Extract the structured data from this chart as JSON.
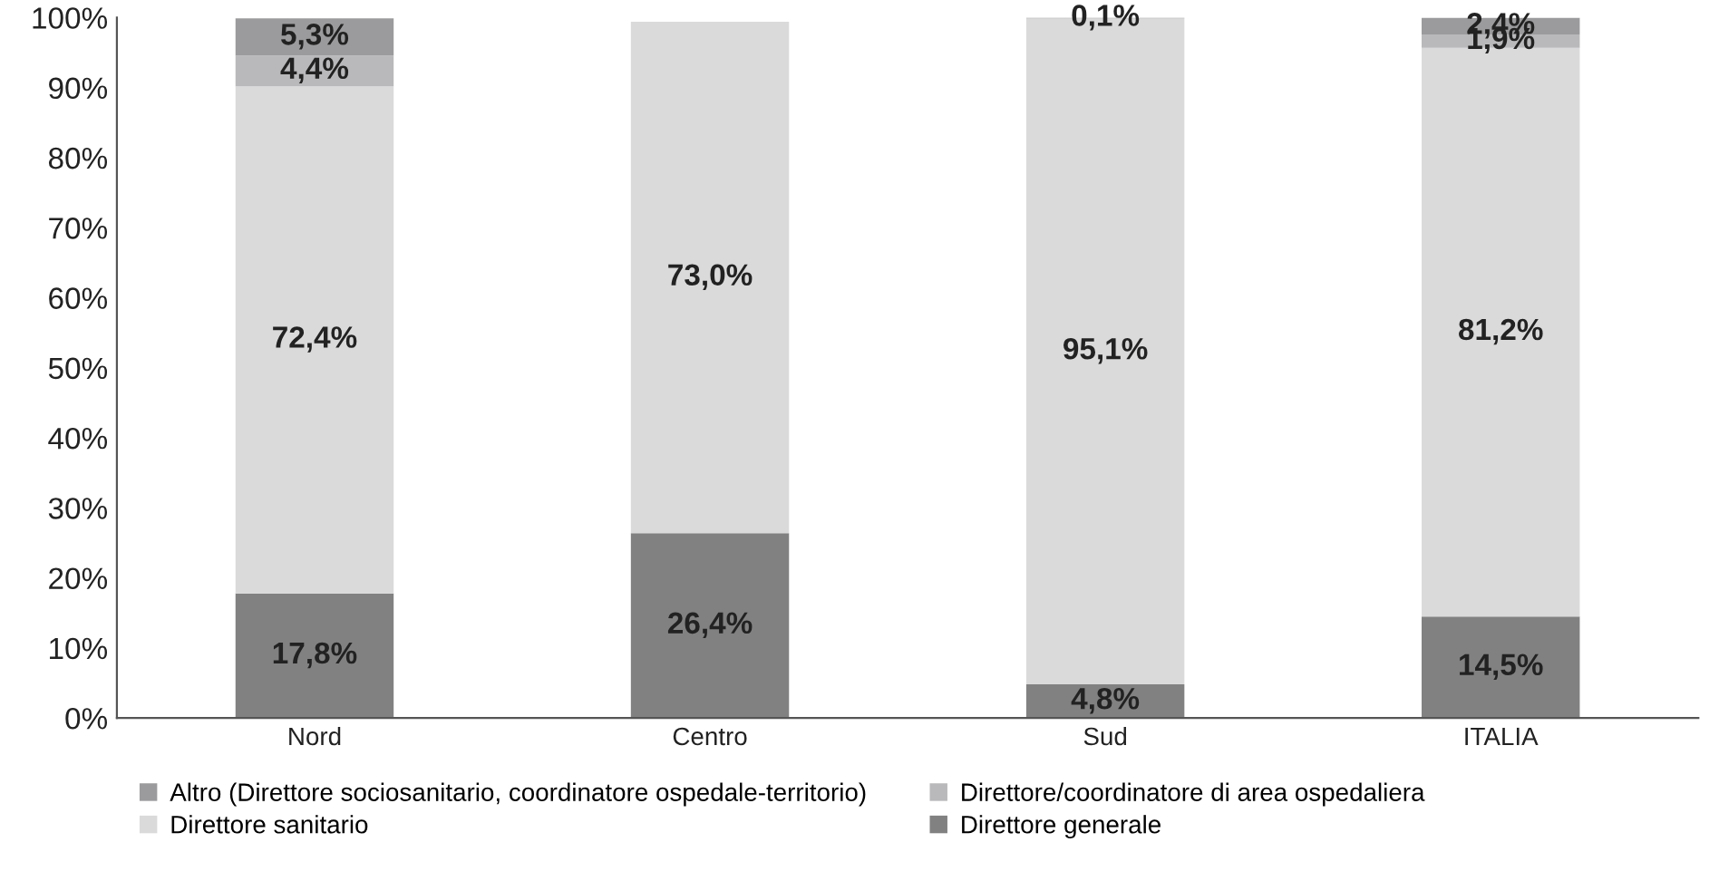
{
  "chart_data": {
    "type": "bar",
    "stacked": true,
    "categories": [
      "Nord",
      "Centro",
      "Sud",
      "ITALIA"
    ],
    "series": [
      {
        "name": "Direttore generale",
        "color": "#818181",
        "values": [
          17.8,
          26.4,
          4.8,
          14.5
        ],
        "value_labels": [
          "17,8%",
          "26,4%",
          "4,8%",
          "14,5%"
        ]
      },
      {
        "name": "Direttore sanitario",
        "color": "#dadadb",
        "values": [
          72.4,
          73.0,
          95.1,
          81.2
        ],
        "value_labels": [
          "72,4%",
          "73,0%",
          "95,1%",
          "81,2%"
        ]
      },
      {
        "name": "Direttore/coordinatore di area ospedaliera",
        "color": "#b9b9bb",
        "values": [
          4.4,
          null,
          null,
          1.9
        ],
        "value_labels": [
          "4,4%",
          null,
          null,
          "1,9%"
        ]
      },
      {
        "name": "Altro (Direttore sociosanitario, coordinatore ospedale-territorio)",
        "color": "#9b9b9d",
        "values": [
          5.3,
          null,
          0.1,
          2.4
        ],
        "value_labels": [
          "5,3%",
          null,
          "0,1%",
          "2,4%"
        ]
      }
    ],
    "ylim": [
      0,
      100
    ],
    "yticks": [
      {
        "value": 0,
        "label": "0%"
      },
      {
        "value": 10,
        "label": "10%"
      },
      {
        "value": 20,
        "label": "20%"
      },
      {
        "value": 30,
        "label": "30%"
      },
      {
        "value": 40,
        "label": "40%"
      },
      {
        "value": 50,
        "label": "50%"
      },
      {
        "value": 60,
        "label": "60%"
      },
      {
        "value": 70,
        "label": "70%"
      },
      {
        "value": 80,
        "label": "80%"
      },
      {
        "value": 90,
        "label": "90%"
      },
      {
        "value": 100,
        "label": "100%"
      }
    ],
    "grid": false,
    "legend": "bottom"
  }
}
